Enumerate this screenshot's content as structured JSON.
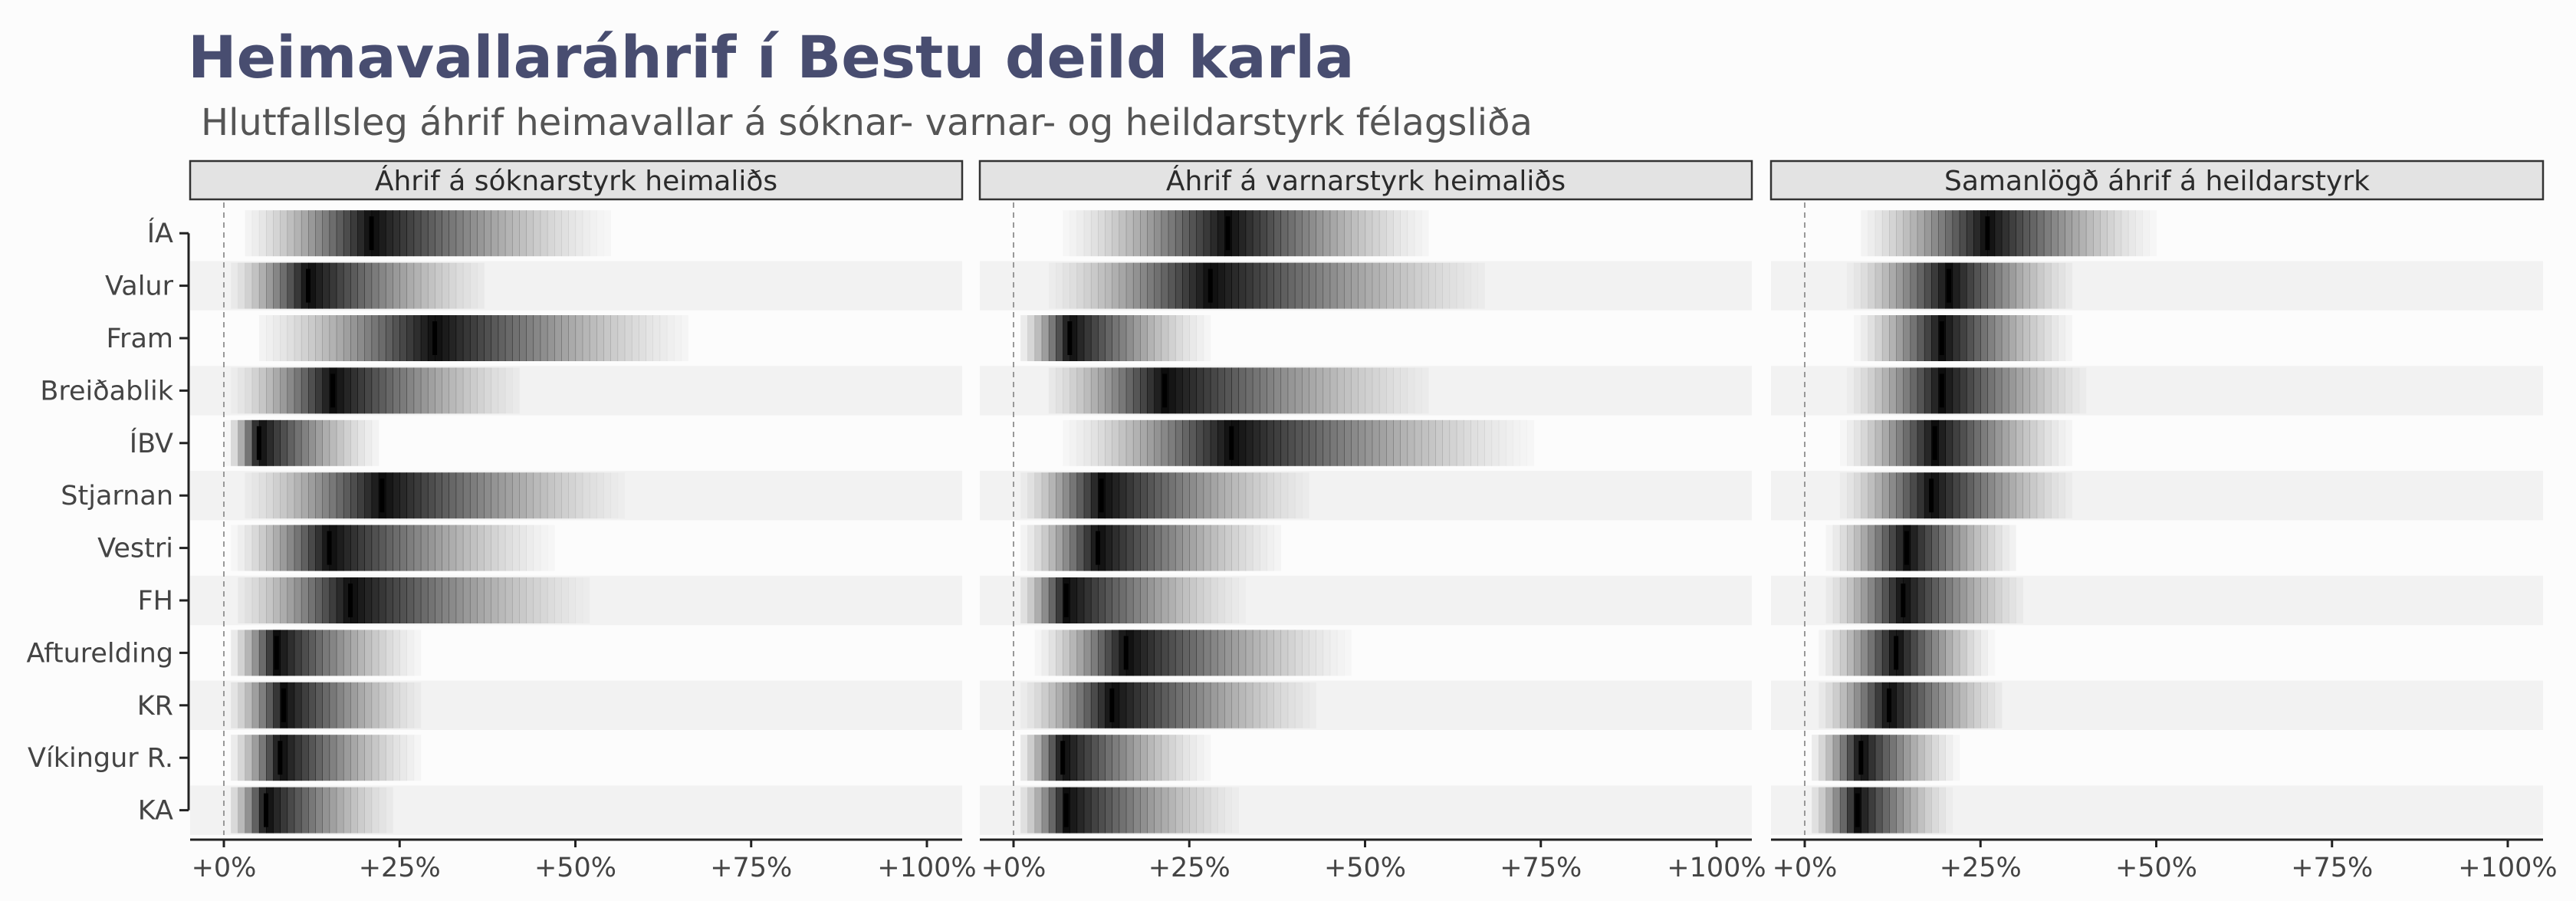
{
  "title": "Heimavallaráhrif í Bestu deild karla",
  "subtitle": "Hlutfallsleg áhrif heimavallar á sóknar- varnar- og heildarstyrk félagsliða",
  "colors": {
    "title": "#484d70",
    "subtitle": "#555555",
    "strip_fill": "#e3e3e3",
    "strip_border": "#333333",
    "band": "#f2f2f2",
    "median_mark": "#000000"
  },
  "chart_data": {
    "type": "gradient-interval",
    "teams": [
      "ÍA",
      "Valur",
      "Fram",
      "Breiðablik",
      "ÍBV",
      "Stjarnan",
      "Vestri",
      "FH",
      "Afturelding",
      "KR",
      "Víkingur R.",
      "KA"
    ],
    "x_ticks": [
      "+0%",
      "+25%",
      "+50%",
      "+75%",
      "+100%"
    ],
    "x_tick_values": [
      0,
      25,
      50,
      75,
      100
    ],
    "xlim": [
      0,
      100
    ],
    "reference_line": 0,
    "grid": false,
    "panels": [
      {
        "label": "Áhrif á sóknarstyrk heimaliðs",
        "medians": [
          21,
          12,
          30,
          15.5,
          5,
          22.5,
          15,
          18,
          7.5,
          8.5,
          8,
          6
        ],
        "ranges": [
          [
            1,
            58
          ],
          [
            0,
            40
          ],
          [
            2,
            70
          ],
          [
            0,
            45
          ],
          [
            0,
            24
          ],
          [
            1,
            60
          ],
          [
            0,
            50
          ],
          [
            0,
            55
          ],
          [
            0,
            30
          ],
          [
            0,
            30
          ],
          [
            0,
            30
          ],
          [
            0,
            26
          ]
        ]
      },
      {
        "label": "Áhrif á varnarstyrk heimaliðs",
        "medians": [
          30.5,
          28,
          8,
          21.5,
          31,
          12.5,
          12,
          7.5,
          16,
          14,
          7,
          7.5
        ],
        "ranges": [
          [
            5,
            62
          ],
          [
            3,
            71
          ],
          [
            0,
            30
          ],
          [
            3,
            63
          ],
          [
            5,
            78
          ],
          [
            0,
            45
          ],
          [
            0,
            41
          ],
          [
            0,
            35
          ],
          [
            2,
            51
          ],
          [
            0,
            46
          ],
          [
            0,
            30
          ],
          [
            0,
            34
          ]
        ]
      },
      {
        "label": "Samanlögð áhrif á heildarstyrk",
        "medians": [
          26,
          20.5,
          19.5,
          19.5,
          18.5,
          18,
          14.5,
          14,
          13,
          12,
          8,
          7.5
        ],
        "ranges": [
          [
            6,
            52
          ],
          [
            5,
            40
          ],
          [
            6,
            40
          ],
          [
            5,
            42
          ],
          [
            4,
            40
          ],
          [
            4,
            40
          ],
          [
            2,
            32
          ],
          [
            2,
            33
          ],
          [
            1,
            28
          ],
          [
            1,
            30
          ],
          [
            0,
            23
          ],
          [
            0,
            22
          ]
        ]
      }
    ]
  }
}
